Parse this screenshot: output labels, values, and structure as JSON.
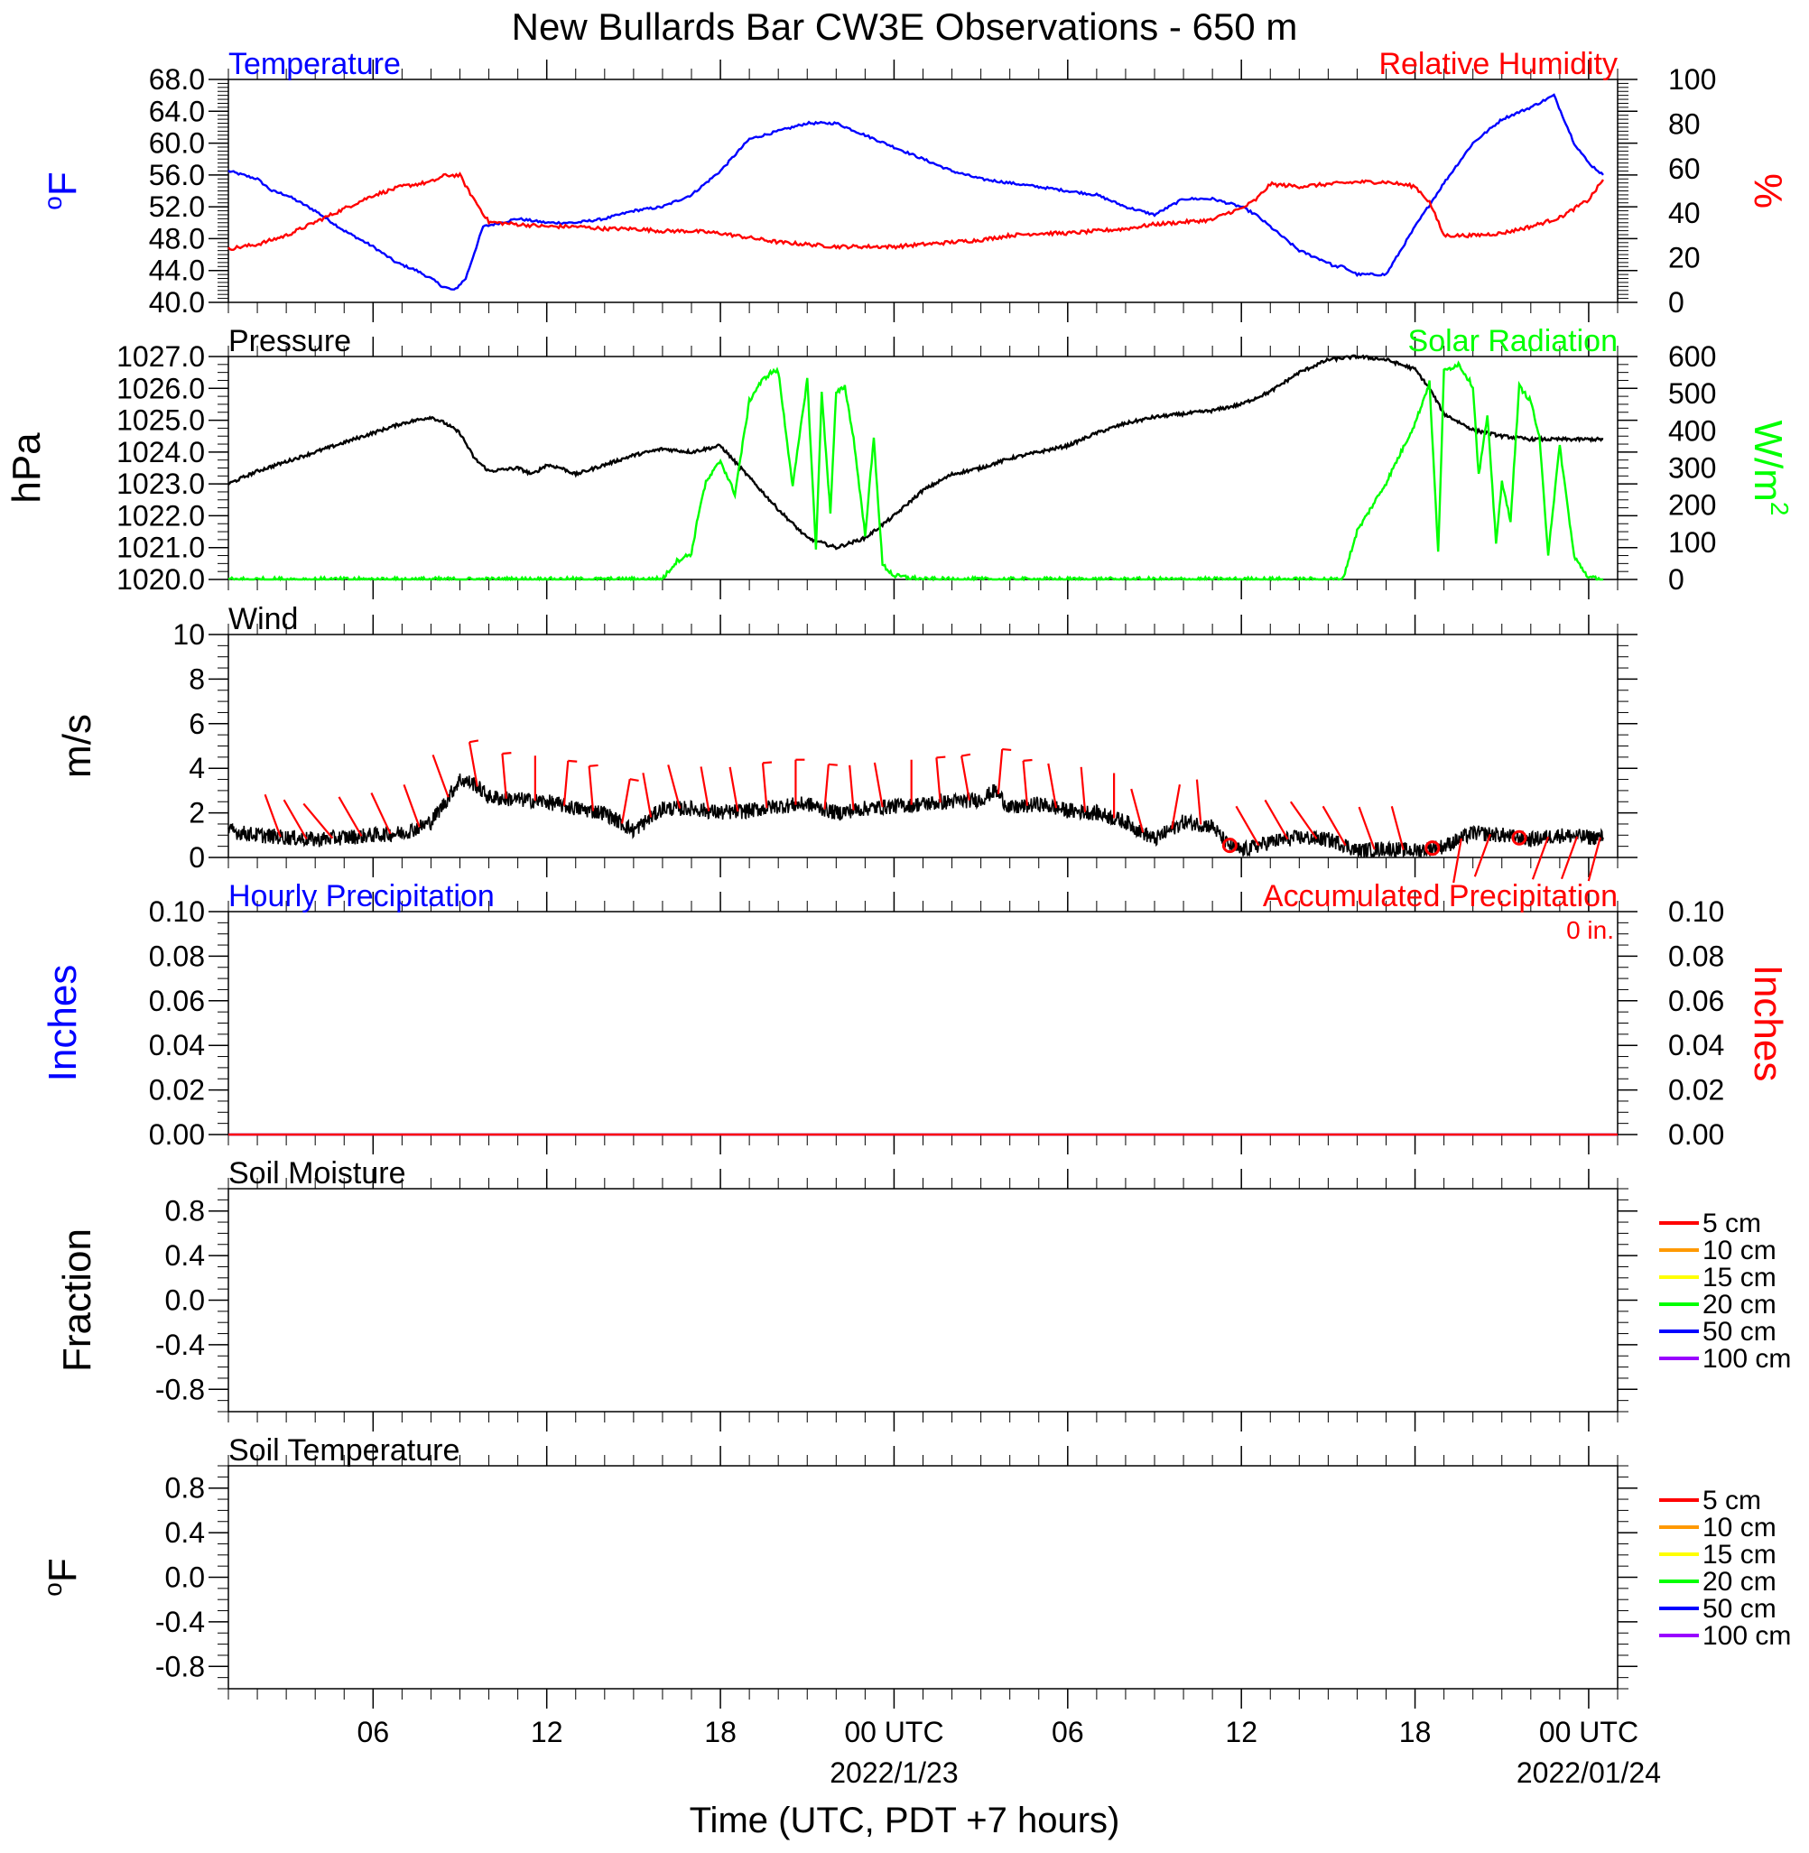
{
  "title": "New Bullards Bar CW3E Observations - 650 m",
  "x_axis": {
    "label": "Time (UTC, PDT +7 hours)",
    "range_hours": [
      0,
      48
    ],
    "ticks": [
      {
        "h": 5,
        "label": "06",
        "date": ""
      },
      {
        "h": 11,
        "label": "12",
        "date": ""
      },
      {
        "h": 17,
        "label": "18",
        "date": ""
      },
      {
        "h": 23,
        "label": "00 UTC",
        "date": "2022/1/23"
      },
      {
        "h": 29,
        "label": "06",
        "date": ""
      },
      {
        "h": 35,
        "label": "12",
        "date": ""
      },
      {
        "h": 41,
        "label": "18",
        "date": ""
      },
      {
        "h": 47,
        "label": "00 UTC",
        "date": "2022/01/24"
      }
    ]
  },
  "colors": {
    "temperature": "#0000ff",
    "humidity": "#ff0000",
    "pressure": "#000000",
    "solar": "#00ff00",
    "wind_speed": "#000000",
    "wind_barb": "#ff0000",
    "hourly_precip": "#0000ff",
    "accum_precip": "#ff0000"
  },
  "chart_data": [
    {
      "type": "line",
      "name": "temperature-humidity",
      "title_left": "Temperature",
      "title_right": "Relative Humidity",
      "ylabel_left": "°F",
      "ylabel_right": "%",
      "ylim_left": [
        40,
        68
      ],
      "yticks_left": [
        "40.0",
        "44.0",
        "48.0",
        "52.0",
        "56.0",
        "60.0",
        "64.0",
        "68.0"
      ],
      "ylim_right": [
        0,
        100
      ],
      "yticks_right": [
        "0",
        "20",
        "40",
        "60",
        "80",
        "100"
      ],
      "series": [
        {
          "name": "Temperature",
          "axis": "left",
          "x": [
            0,
            1,
            1.5,
            2,
            3,
            4,
            5,
            5.8,
            6.5,
            7,
            7.4,
            7.8,
            8.2,
            8.8,
            10,
            11,
            12,
            13,
            13.5,
            14,
            15,
            16,
            17,
            18,
            19,
            20,
            21,
            22,
            23,
            24,
            25,
            26,
            27,
            28,
            29,
            30,
            31,
            32,
            32.5,
            33,
            34,
            35,
            35.5,
            36,
            37,
            38,
            38.2,
            38.5,
            39,
            40,
            41,
            42,
            43,
            44,
            45,
            45.8,
            46.5,
            47,
            47.5
          ],
          "y": [
            56.5,
            55.5,
            54.0,
            53.5,
            51.5,
            49.0,
            47.0,
            45.0,
            44.0,
            43.0,
            42.0,
            41.5,
            43.0,
            49.5,
            50.5,
            50.0,
            50.0,
            50.5,
            51.0,
            51.5,
            52.0,
            53.5,
            56.5,
            60.5,
            61.5,
            62.5,
            62.5,
            61.0,
            59.5,
            58.0,
            56.5,
            55.5,
            55.0,
            54.5,
            54.0,
            53.5,
            52.0,
            51.0,
            52.0,
            53.0,
            53.0,
            52.0,
            51.0,
            49.5,
            46.5,
            45.0,
            44.5,
            44.5,
            43.5,
            43.5,
            49.5,
            55.0,
            60.0,
            63.0,
            64.5,
            66.0,
            60.0,
            57.5,
            56.0
          ]
        },
        {
          "name": "Relative Humidity",
          "axis": "right",
          "x": [
            0,
            1,
            2,
            3,
            4,
            5,
            6,
            7,
            7.5,
            8,
            8.3,
            9,
            10,
            11,
            12,
            13,
            14,
            15,
            16,
            17,
            18,
            19,
            20,
            21,
            22,
            23,
            24,
            25,
            26,
            27,
            28,
            29,
            30,
            31,
            32,
            33,
            34,
            34.5,
            35,
            35.5,
            36,
            37,
            38,
            39,
            40,
            40.5,
            41,
            41.5,
            42,
            43,
            44,
            45,
            46,
            47,
            47.5
          ],
          "y": [
            24,
            26,
            30,
            36,
            42,
            48,
            52,
            54,
            57,
            57,
            50,
            36,
            35,
            34,
            34,
            33,
            33,
            32,
            32,
            31,
            29,
            27,
            26,
            25,
            25,
            25,
            26,
            27,
            28,
            30,
            31,
            31,
            32,
            33,
            35,
            36,
            37,
            40,
            42,
            46,
            53,
            52,
            53,
            54,
            54,
            53,
            52,
            45,
            30,
            30,
            31,
            34,
            38,
            46,
            55
          ]
        }
      ]
    },
    {
      "type": "line",
      "name": "pressure-solar",
      "title_left": "Pressure",
      "title_right": "Solar Radiation",
      "ylabel_left": "hPa",
      "ylabel_right": "W/m",
      "ylabel_right_sup": "2",
      "ylim_left": [
        1020,
        1027
      ],
      "yticks_left": [
        "1020.0",
        "1021.0",
        "1022.0",
        "1023.0",
        "1024.0",
        "1025.0",
        "1026.0",
        "1027.0"
      ],
      "ylim_right": [
        0,
        600
      ],
      "yticks_right": [
        "0",
        "100",
        "200",
        "300",
        "400",
        "500",
        "600"
      ],
      "series": [
        {
          "name": "Pressure",
          "axis": "left",
          "x": [
            0,
            1,
            2,
            3,
            4,
            5,
            6,
            6.5,
            7,
            7.5,
            8,
            8.5,
            9,
            10,
            10.5,
            11,
            11.5,
            12,
            13,
            14,
            15,
            16,
            17,
            18,
            19,
            20,
            21,
            22,
            23,
            24,
            25,
            26,
            27,
            28,
            29,
            30,
            31,
            32,
            33,
            34,
            35,
            36,
            37,
            38,
            39,
            40,
            41,
            41.5,
            42,
            43,
            44,
            45,
            46,
            47,
            47.5
          ],
          "y": [
            1023.0,
            1023.4,
            1023.7,
            1024.0,
            1024.3,
            1024.6,
            1024.9,
            1025.0,
            1025.1,
            1024.9,
            1024.6,
            1023.8,
            1023.4,
            1023.5,
            1023.3,
            1023.6,
            1023.5,
            1023.3,
            1023.6,
            1023.9,
            1024.1,
            1024.0,
            1024.2,
            1023.2,
            1022.2,
            1021.3,
            1021.0,
            1021.3,
            1022.0,
            1022.8,
            1023.3,
            1023.5,
            1023.8,
            1024.0,
            1024.2,
            1024.6,
            1024.9,
            1025.1,
            1025.2,
            1025.3,
            1025.5,
            1025.9,
            1026.5,
            1026.9,
            1027.0,
            1026.9,
            1026.6,
            1026.0,
            1025.2,
            1024.7,
            1024.5,
            1024.4,
            1024.4,
            1024.4,
            1024.4
          ]
        },
        {
          "name": "Solar Radiation",
          "axis": "right",
          "x": [
            0,
            14.5,
            15,
            15.5,
            16,
            16.3,
            16.5,
            17,
            17.5,
            18,
            18.3,
            18.5,
            18.8,
            19,
            19.5,
            20,
            20.3,
            20.5,
            20.8,
            21,
            21.3,
            21.6,
            22,
            22.3,
            22.6,
            23,
            24,
            25,
            26,
            27,
            28,
            29,
            30,
            31,
            32,
            33,
            38.5,
            39,
            40,
            41,
            41.5,
            41.8,
            42,
            42.5,
            43,
            43.2,
            43.5,
            43.8,
            44,
            44.3,
            44.6,
            45,
            45.3,
            45.6,
            46,
            46.5,
            47,
            47.5
          ],
          "y": [
            0,
            0,
            2,
            50,
            70,
            200,
            260,
            320,
            230,
            480,
            520,
            540,
            560,
            560,
            250,
            540,
            80,
            500,
            180,
            500,
            520,
            380,
            120,
            380,
            40,
            10,
            0,
            0,
            0,
            0,
            0,
            0,
            0,
            0,
            0,
            0,
            0,
            130,
            260,
            420,
            530,
            70,
            560,
            580,
            520,
            280,
            440,
            100,
            260,
            160,
            520,
            480,
            380,
            70,
            360,
            60,
            5,
            0
          ]
        }
      ]
    },
    {
      "type": "line",
      "name": "wind",
      "title_left": "Wind",
      "ylabel_left": "m/s",
      "ylim_left": [
        0,
        10
      ],
      "yticks_left": [
        "0",
        "2",
        "4",
        "6",
        "8",
        "10"
      ],
      "series": [
        {
          "name": "Wind",
          "axis": "left",
          "x": [
            0,
            1,
            2,
            3,
            4,
            5,
            6,
            6.5,
            7,
            7.5,
            8,
            8.5,
            9,
            10,
            11,
            12,
            13,
            14,
            15,
            16,
            17,
            18,
            19,
            20,
            21,
            22,
            23,
            24,
            25,
            26,
            26.5,
            27,
            28,
            29,
            30,
            31,
            32,
            33,
            34,
            34.5,
            35,
            36,
            37,
            38,
            38.5,
            39,
            40,
            41,
            42,
            43,
            44,
            45,
            46,
            47,
            47.5
          ],
          "y": [
            1.2,
            1.0,
            0.9,
            0.8,
            0.9,
            1.0,
            1.1,
            1.3,
            1.6,
            2.5,
            3.5,
            3.3,
            2.7,
            2.6,
            2.5,
            2.2,
            2.0,
            1.2,
            2.2,
            2.2,
            2.0,
            2.1,
            2.3,
            2.4,
            2.0,
            2.2,
            2.3,
            2.4,
            2.5,
            2.6,
            3.0,
            2.2,
            2.4,
            2.1,
            2.0,
            1.6,
            0.8,
            1.6,
            1.4,
            0.6,
            0.3,
            0.7,
            0.9,
            0.8,
            0.6,
            0.3,
            0.4,
            0.3,
            0.5,
            1.1,
            1.0,
            0.8,
            1.0,
            0.9,
            0.9
          ]
        }
      ],
      "barbs": {
        "x": [
          1.8,
          2.7,
          3.6,
          4.6,
          5.6,
          6.6,
          7.6,
          8.6,
          9.6,
          10.6,
          11.6,
          12.6,
          13.6,
          14.6,
          15.6,
          16.6,
          17.6,
          18.6,
          19.6,
          20.6,
          21.6,
          22.6,
          23.6,
          24.6,
          25.6,
          26.6,
          27.6,
          28.6,
          29.6,
          30.6,
          31.6,
          32.6,
          33.6,
          34.6,
          35.6,
          36.6,
          37.6,
          38.6,
          39.6,
          40.6,
          41.6,
          42.6,
          43.6,
          44.6,
          45.6,
          46.6,
          47.4
        ],
        "dir": [
          340,
          330,
          320,
          330,
          335,
          340,
          340,
          350,
          355,
          0,
          5,
          355,
          10,
          350,
          345,
          350,
          350,
          355,
          0,
          5,
          355,
          350,
          0,
          355,
          350,
          5,
          355,
          350,
          355,
          0,
          345,
          10,
          355,
          "calm",
          330,
          330,
          325,
          330,
          340,
          345,
          "calm",
          190,
          200,
          "calm",
          200,
          200,
          195
        ],
        "speed": [
          1.5,
          1.5,
          1.2,
          1.5,
          1.5,
          2.0,
          3.5,
          4.5,
          6.0,
          4.0,
          4.5,
          6.5,
          4.5,
          3.0,
          3.0,
          3.5,
          4.0,
          4.5,
          4.5,
          5.0,
          4.0,
          4.0,
          4.0,
          4.5,
          4.5,
          4.5,
          4.5,
          4.0,
          4.0,
          3.5,
          3.5,
          3.0,
          3.5,
          0,
          3.0,
          3.0,
          3.0,
          3.0,
          3.0,
          3.0,
          0,
          1.5,
          1.5,
          0,
          2.0,
          2.0,
          1.5
        ]
      }
    },
    {
      "type": "line",
      "name": "precipitation",
      "title_left": "Hourly Precipitation",
      "title_right": "Accumulated Precipitation",
      "accum_label": "0 in.",
      "ylabel_left": "Inches",
      "ylabel_right": "Inches",
      "ylim_left": [
        0,
        0.1
      ],
      "yticks_left": [
        "0.00",
        "0.02",
        "0.04",
        "0.06",
        "0.08",
        "0.10"
      ],
      "ylim_right": [
        0,
        0.1
      ],
      "yticks_right": [
        "0.00",
        "0.02",
        "0.04",
        "0.06",
        "0.08",
        "0.10"
      ],
      "series": [
        {
          "name": "Hourly Precipitation",
          "axis": "left",
          "x": [
            0,
            48
          ],
          "y": [
            0,
            0
          ]
        },
        {
          "name": "Accumulated Precipitation",
          "axis": "right",
          "x": [
            0,
            48
          ],
          "y": [
            0,
            0
          ]
        }
      ]
    },
    {
      "type": "line",
      "name": "soil-moisture",
      "title_left": "Soil Moisture",
      "ylabel_left": "Fraction",
      "ylim_left": [
        -1,
        1
      ],
      "yticks_left": [
        "-0.8",
        "-0.4",
        "0.0",
        "0.4",
        "0.8"
      ],
      "legend": [
        {
          "label": "5 cm",
          "color": "#ff0000"
        },
        {
          "label": "10 cm",
          "color": "#ff9900"
        },
        {
          "label": "15 cm",
          "color": "#ffff00"
        },
        {
          "label": "20 cm",
          "color": "#00ff00"
        },
        {
          "label": "50 cm",
          "color": "#0000ff"
        },
        {
          "label": "100 cm",
          "color": "#9900ff"
        }
      ],
      "series": []
    },
    {
      "type": "line",
      "name": "soil-temperature",
      "title_left": "Soil Temperature",
      "ylabel_left": "°F",
      "ylim_left": [
        -1,
        1
      ],
      "yticks_left": [
        "-0.8",
        "-0.4",
        "0.0",
        "0.4",
        "0.8"
      ],
      "legend": [
        {
          "label": "5 cm",
          "color": "#ff0000"
        },
        {
          "label": "10 cm",
          "color": "#ff9900"
        },
        {
          "label": "15 cm",
          "color": "#ffff00"
        },
        {
          "label": "20 cm",
          "color": "#00ff00"
        },
        {
          "label": "50 cm",
          "color": "#0000ff"
        },
        {
          "label": "100 cm",
          "color": "#9900ff"
        }
      ],
      "series": []
    }
  ]
}
